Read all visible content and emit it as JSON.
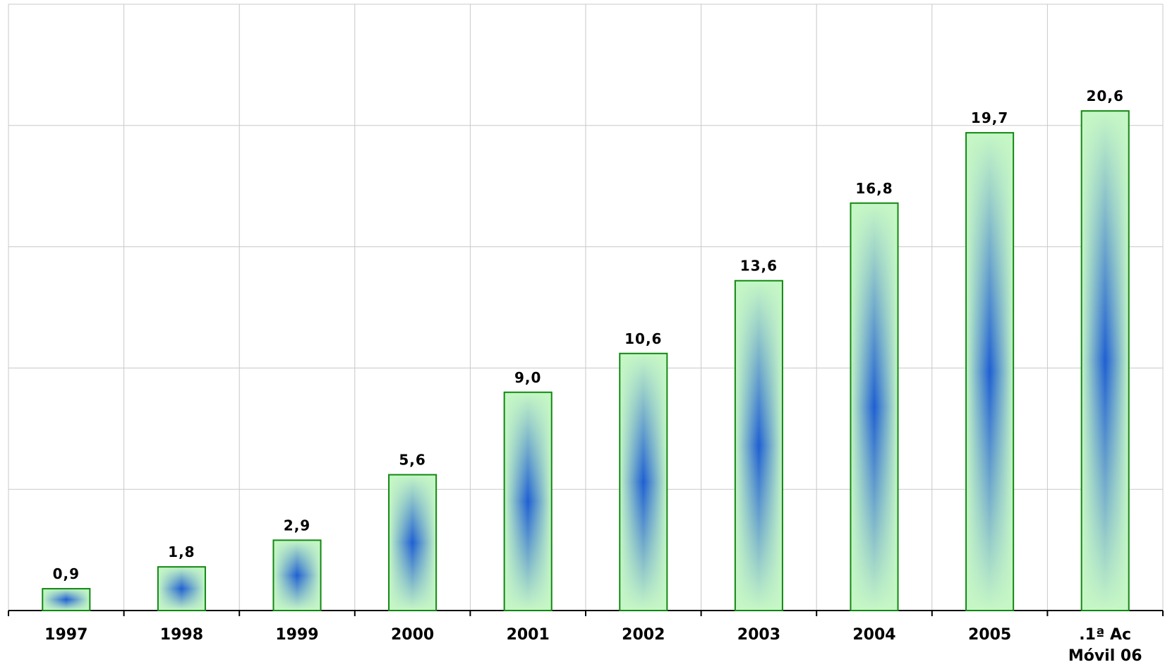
{
  "chart_data": {
    "type": "bar",
    "categories": [
      "1997",
      "1998",
      "1999",
      "2000",
      "2001",
      "2002",
      "2003",
      "2004",
      "2005",
      ".1ª Ac\nMóvil 06"
    ],
    "values": [
      0.9,
      1.8,
      2.9,
      5.6,
      9.0,
      10.6,
      13.6,
      16.8,
      19.7,
      20.6
    ],
    "value_labels": [
      "0,9",
      "1,8",
      "2,9",
      "5,6",
      "9,0",
      "10,6",
      "13,6",
      "16,8",
      "19,7",
      "20,6"
    ],
    "color": "#2060d0",
    "ylim": [
      0,
      25
    ],
    "yticks": [
      0,
      5,
      10,
      15,
      20,
      25
    ],
    "grid": true
  }
}
